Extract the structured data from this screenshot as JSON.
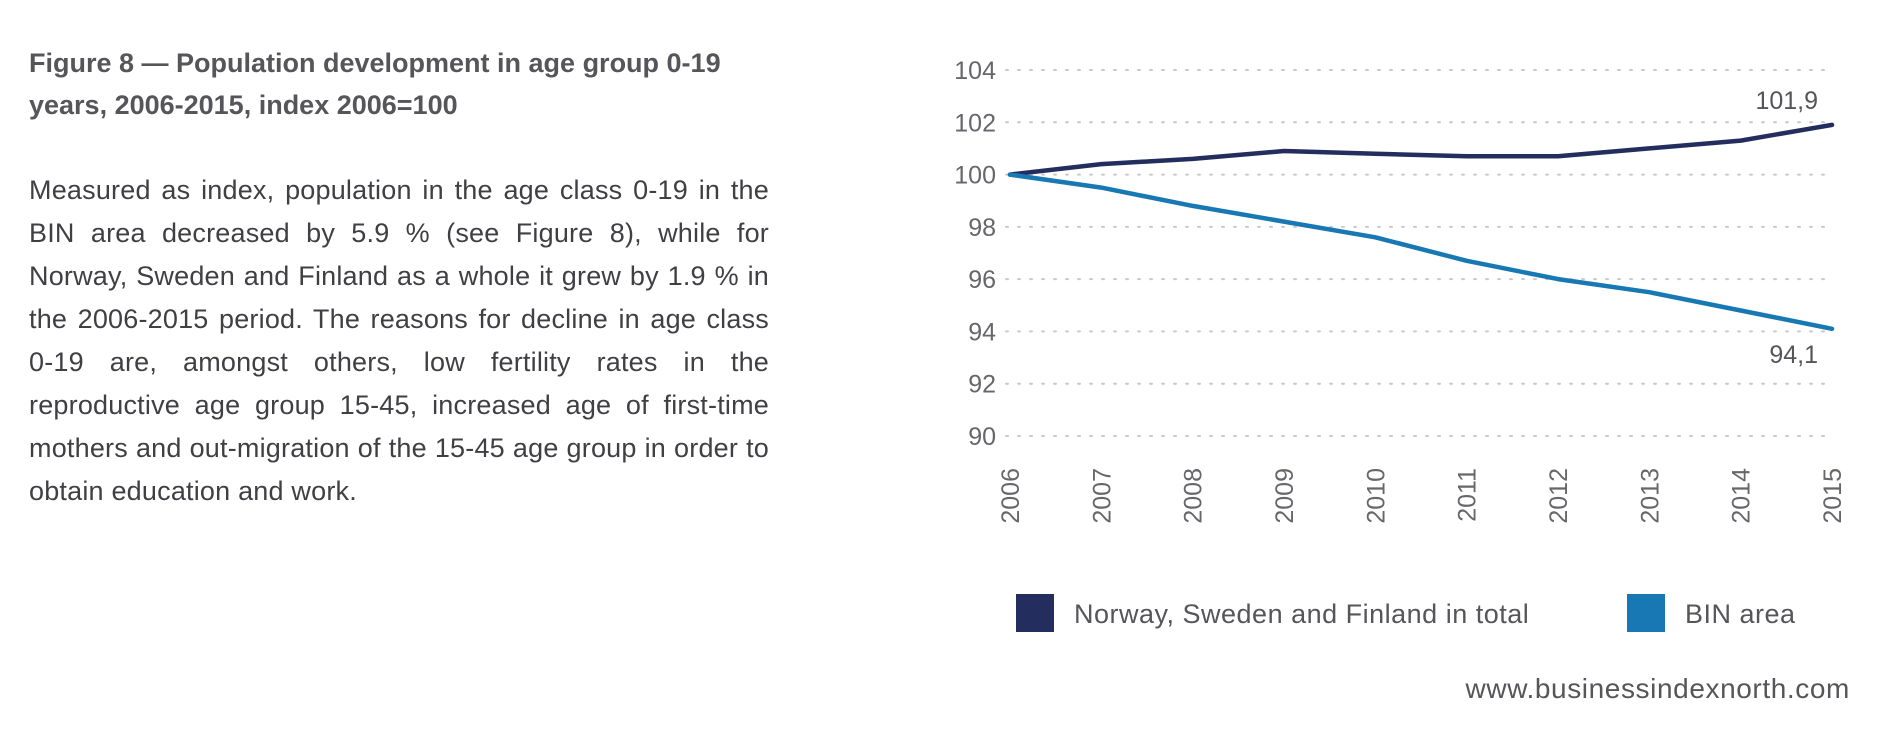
{
  "figure": {
    "title": "Figure 8 — Population development in age group 0-19 years, 2006-2015, index 2006=100",
    "body": "Measured as index, population in the age class 0-19 in the BIN area decreased by 5.9 % (see Figure 8), while for Norway, Sweden and Finland as a whole it grew by 1.9 % in the 2006-2015 period. The reasons for decline in age class 0-19 are, amongst others, low fertility rates in the reproductive age group 15-45, increased age of first-time mothers and out-migration of the 15-45 age group in order to obtain education and work."
  },
  "footer": {
    "url": "www.businessindexnorth.com"
  },
  "chart_data": {
    "type": "line",
    "title": "Population development in age group 0-19 years, 2006-2015, index 2006=100",
    "x": [
      "2006",
      "2007",
      "2008",
      "2009",
      "2010",
      "2011",
      "2012",
      "2013",
      "2014",
      "2015"
    ],
    "ylim": [
      90,
      104
    ],
    "yticks": [
      90,
      92,
      94,
      96,
      98,
      100,
      102,
      104
    ],
    "grid": "horizontal dotted",
    "legend_position": "bottom",
    "series": [
      {
        "name": "Norway, Sweden and Finland in total",
        "color": "#232d5e",
        "values": [
          100,
          100.4,
          100.6,
          100.9,
          100.8,
          100.7,
          100.7,
          101.0,
          101.3,
          101.9
        ],
        "end_label": "101,9"
      },
      {
        "name": "BIN area",
        "color": "#1878b4",
        "values": [
          100,
          99.5,
          98.8,
          98.2,
          97.6,
          96.7,
          96.0,
          95.5,
          94.8,
          94.1
        ],
        "end_label": "94,1"
      }
    ]
  }
}
